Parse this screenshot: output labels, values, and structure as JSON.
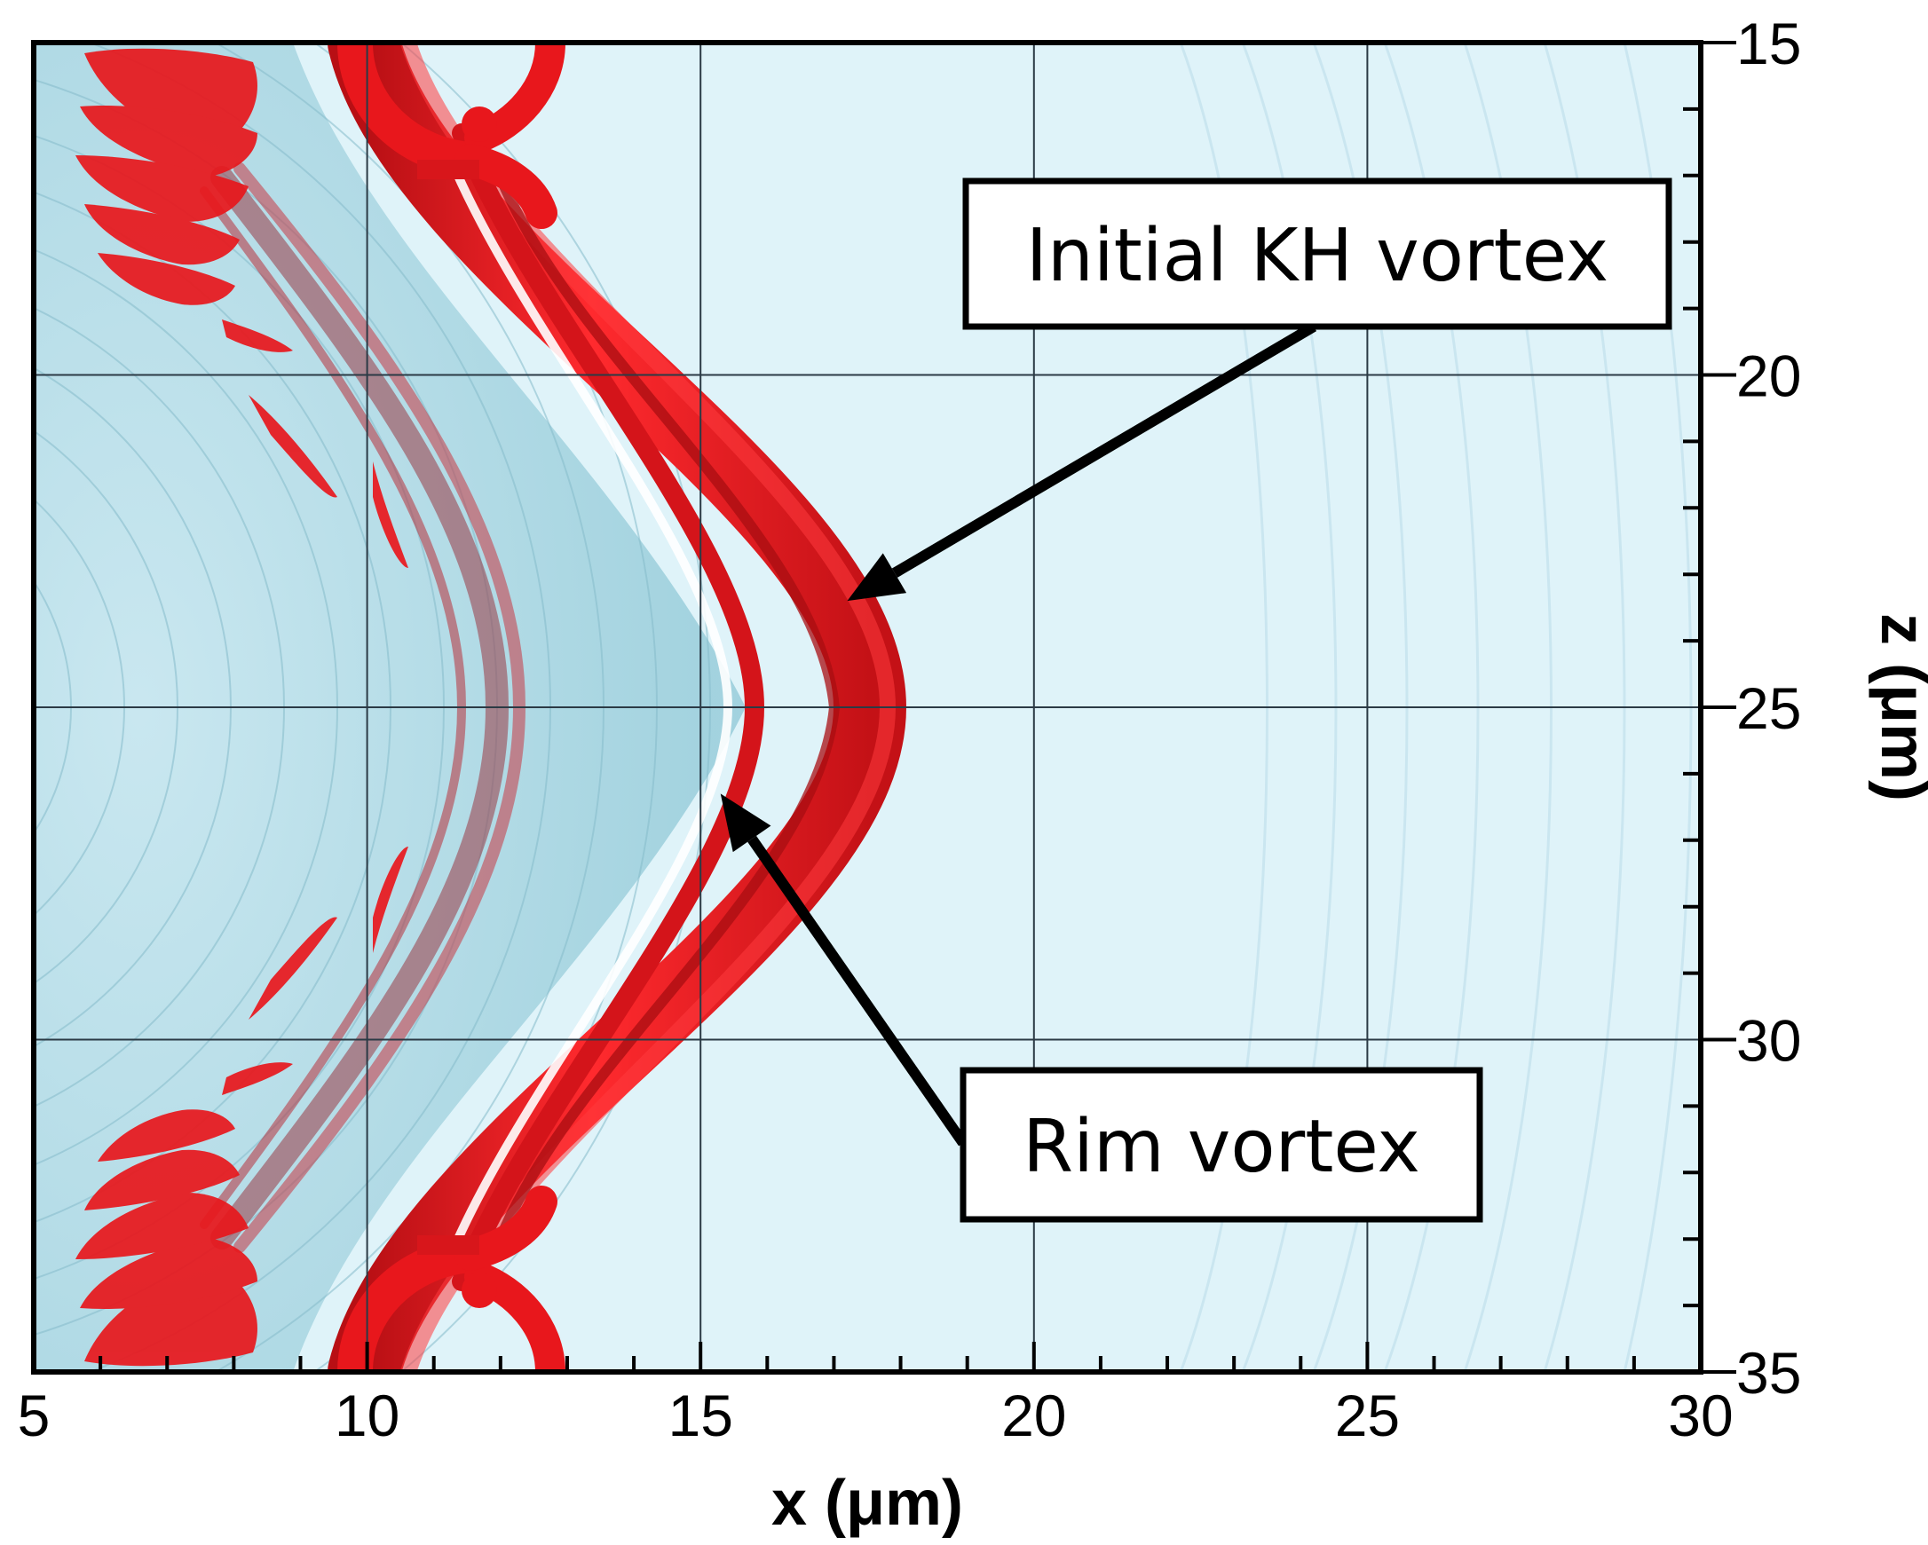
{
  "chart_data": {
    "type": "contour",
    "title": "",
    "xlabel": "x (μm)",
    "ylabel": "z (μm)",
    "xlim": [
      5,
      30
    ],
    "ylim": [
      15,
      35
    ],
    "y_inverted": true,
    "grid": true,
    "x_ticks": [
      5,
      10,
      15,
      20,
      25,
      30
    ],
    "y_ticks": [
      15,
      20,
      25,
      30,
      35
    ],
    "x_minor_step": 1,
    "y_minor_step": 1,
    "annotations": [
      {
        "text": "Initial KH vortex",
        "arrow_to": {
          "x": 17.2,
          "z": 23.4
        }
      },
      {
        "text": "Rim vortex",
        "arrow_to": {
          "x": 15.3,
          "z": 26.3
        }
      }
    ]
  },
  "colors": {
    "background": "#dff3f9",
    "shaded_region": "#a9d6e2",
    "vortex": "#e8171c",
    "vortex_dark": "#a80d12",
    "grid": "#2b3a45"
  }
}
